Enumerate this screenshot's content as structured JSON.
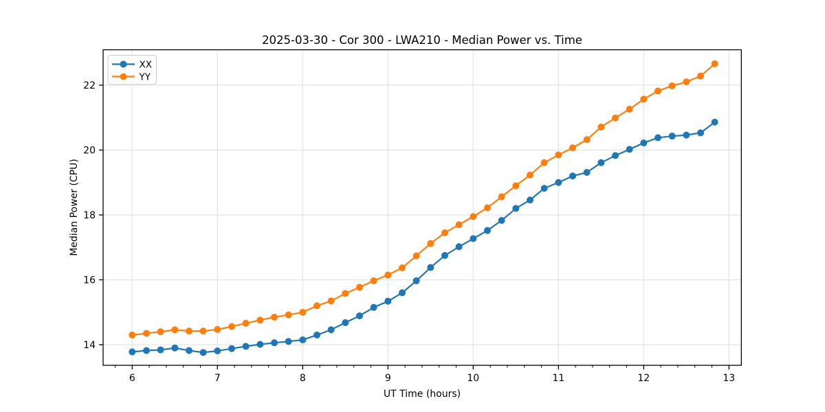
{
  "figure": {
    "background": "#ffffff",
    "grid_color": "#e3e3e3",
    "spine_color": "#000000",
    "legend_border_color": "#cccccc"
  },
  "chart_data": {
    "type": "line",
    "title": "2025-03-30 - Cor 300 - LWA210 - Median Power vs. Time",
    "xlabel": "UT Time (hours)",
    "ylabel": "Median Power (CPU)",
    "xlim": [
      5.659,
      13.145
    ],
    "ylim": [
      13.365,
      23.09
    ],
    "x_major_ticks": [
      6,
      7,
      8,
      9,
      10,
      11,
      12,
      13
    ],
    "x_minor_tick_step": 0.2,
    "y_major_ticks": [
      14,
      16,
      18,
      20,
      22
    ],
    "grid": "major-only",
    "legend_position": "upper-left",
    "marker": "circle",
    "x": [
      6.0,
      6.167,
      6.333,
      6.5,
      6.667,
      6.833,
      7.0,
      7.167,
      7.333,
      7.5,
      7.667,
      7.833,
      8.0,
      8.167,
      8.333,
      8.5,
      8.667,
      8.833,
      9.0,
      9.167,
      9.333,
      9.5,
      9.667,
      9.833,
      10.0,
      10.167,
      10.333,
      10.5,
      10.667,
      10.833,
      11.0,
      11.167,
      11.333,
      11.5,
      11.667,
      11.833,
      12.0,
      12.167,
      12.333,
      12.5,
      12.667,
      12.833
    ],
    "series": [
      {
        "name": "XX",
        "color": "#1f77b4",
        "values": [
          13.78,
          13.82,
          13.84,
          13.9,
          13.82,
          13.76,
          13.81,
          13.88,
          13.95,
          14.01,
          14.06,
          14.1,
          14.15,
          14.3,
          14.46,
          14.68,
          14.89,
          15.15,
          15.34,
          15.6,
          15.97,
          16.38,
          16.75,
          17.02,
          17.27,
          17.52,
          17.83,
          18.2,
          18.46,
          18.82,
          19.0,
          19.2,
          19.31,
          19.61,
          19.83,
          20.02,
          20.22,
          20.38,
          20.43,
          20.46,
          20.53,
          20.86
        ]
      },
      {
        "name": "YY",
        "color": "#ff7f0e",
        "values": [
          14.3,
          14.35,
          14.4,
          14.46,
          14.42,
          14.42,
          14.47,
          14.56,
          14.66,
          14.76,
          14.85,
          14.92,
          15.0,
          15.2,
          15.35,
          15.58,
          15.77,
          15.97,
          16.15,
          16.37,
          16.74,
          17.12,
          17.45,
          17.7,
          17.95,
          18.22,
          18.56,
          18.9,
          19.23,
          19.61,
          19.85,
          20.07,
          20.32,
          20.71,
          20.99,
          21.26,
          21.57,
          21.82,
          21.98,
          22.1,
          22.28,
          22.66
        ]
      }
    ]
  }
}
